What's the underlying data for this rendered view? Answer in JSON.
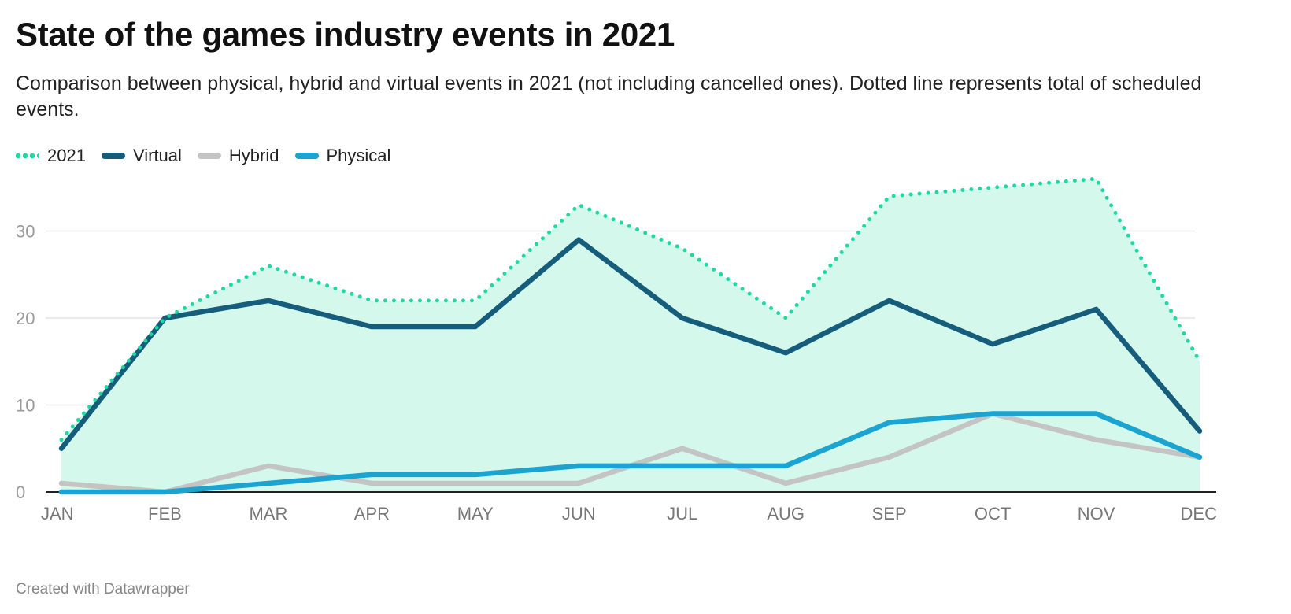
{
  "title": "State of the games industry events in 2021",
  "subtitle": "Comparison between physical, hybrid and virtual events in 2021 (not including cancelled ones). Dotted line represents total of scheduled events.",
  "footer": "Created with Datawrapper",
  "legend": [
    {
      "label": "2021",
      "color": "#1ed9a4",
      "style": "dotted"
    },
    {
      "label": "Virtual",
      "color": "#165d7c",
      "style": "solid"
    },
    {
      "label": "Hybrid",
      "color": "#c4c4c4",
      "style": "solid"
    },
    {
      "label": "Physical",
      "color": "#1ba3d1",
      "style": "solid"
    }
  ],
  "chart_data": {
    "type": "line",
    "categories": [
      "JAN",
      "FEB",
      "MAR",
      "APR",
      "MAY",
      "JUN",
      "JUL",
      "AUG",
      "SEP",
      "OCT",
      "NOV",
      "DEC"
    ],
    "series": [
      {
        "name": "2021",
        "values": [
          6,
          20,
          26,
          22,
          22,
          33,
          28,
          20,
          34,
          35,
          36,
          15
        ],
        "color": "#1ed9a4",
        "style": "dotted",
        "area_fill": "#d4f9ec"
      },
      {
        "name": "Virtual",
        "values": [
          5,
          20,
          22,
          19,
          19,
          29,
          20,
          16,
          22,
          17,
          21,
          7
        ],
        "color": "#165d7c",
        "style": "solid"
      },
      {
        "name": "Hybrid",
        "values": [
          1,
          0,
          3,
          1,
          1,
          1,
          5,
          1,
          4,
          9,
          6,
          4
        ],
        "color": "#c4c4c4",
        "style": "solid"
      },
      {
        "name": "Physical",
        "values": [
          0,
          0,
          1,
          2,
          2,
          3,
          3,
          3,
          8,
          9,
          9,
          4
        ],
        "color": "#1ba3d1",
        "style": "solid"
      }
    ],
    "yticks": [
      "0",
      "10",
      "20",
      "30"
    ],
    "ylim": [
      0,
      38
    ],
    "grid": true,
    "legend_position": "top-left"
  }
}
